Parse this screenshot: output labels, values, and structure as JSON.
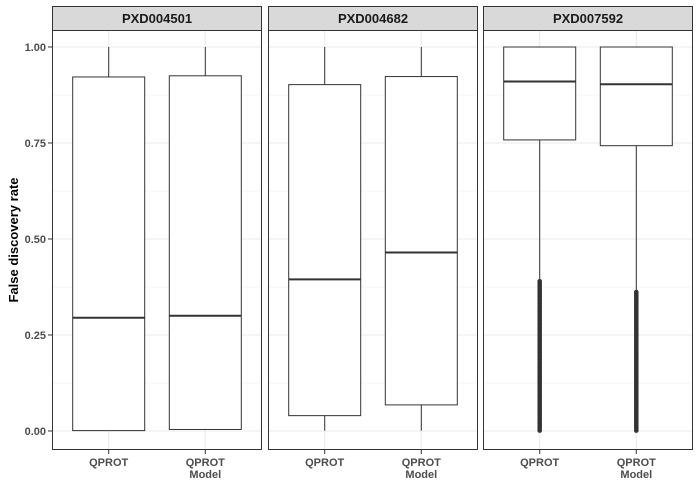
{
  "chart_data": {
    "type": "boxplot",
    "ylabel": "False discovery rate",
    "xlabel": "",
    "ylim": [
      -0.04,
      1.06
    ],
    "yticks": [
      {
        "value": 0.0,
        "label": "0.00"
      },
      {
        "value": 0.25,
        "label": "0.25"
      },
      {
        "value": 0.5,
        "label": "0.50"
      },
      {
        "value": 0.75,
        "label": "0.75"
      },
      {
        "value": 1.0,
        "label": "1.00"
      }
    ],
    "categories": [
      {
        "id": "qprot",
        "lines": [
          "QPROT"
        ]
      },
      {
        "id": "qprot_model",
        "lines": [
          "QPROT",
          "Model"
        ]
      }
    ],
    "grid": true,
    "colors": {
      "panel_border": "#333333",
      "strip_fill": "#d9d9d9",
      "grid": "#ebebeb",
      "box_stroke": "#333333",
      "box_fill": "#ffffff",
      "outlier": "#333333"
    },
    "panels": [
      {
        "title": "PXD004501",
        "boxes": [
          {
            "category": "qprot",
            "min": 0.001,
            "q1": 0.001,
            "median": 0.295,
            "q3": 0.922,
            "max": 1.0
          },
          {
            "category": "qprot_model",
            "min": 0.003,
            "q1": 0.004,
            "median": 0.3,
            "q3": 0.925,
            "max": 1.0
          }
        ]
      },
      {
        "title": "PXD004682",
        "boxes": [
          {
            "category": "qprot",
            "min": 0.001,
            "q1": 0.04,
            "median": 0.395,
            "q3": 0.902,
            "max": 1.0
          },
          {
            "category": "qprot_model",
            "min": 0.001,
            "q1": 0.068,
            "median": 0.465,
            "q3": 0.923,
            "max": 1.0
          }
        ]
      },
      {
        "title": "PXD007592",
        "boxes": [
          {
            "category": "qprot",
            "min": 0.39,
            "q1": 0.758,
            "median": 0.91,
            "q3": 1.0,
            "max": 1.0,
            "outliers_range": [
              0.001,
              0.39
            ]
          },
          {
            "category": "qprot_model",
            "min": 0.362,
            "q1": 0.743,
            "median": 0.903,
            "q3": 1.0,
            "max": 1.0,
            "outliers_range": [
              0.001,
              0.362
            ]
          }
        ]
      }
    ]
  }
}
